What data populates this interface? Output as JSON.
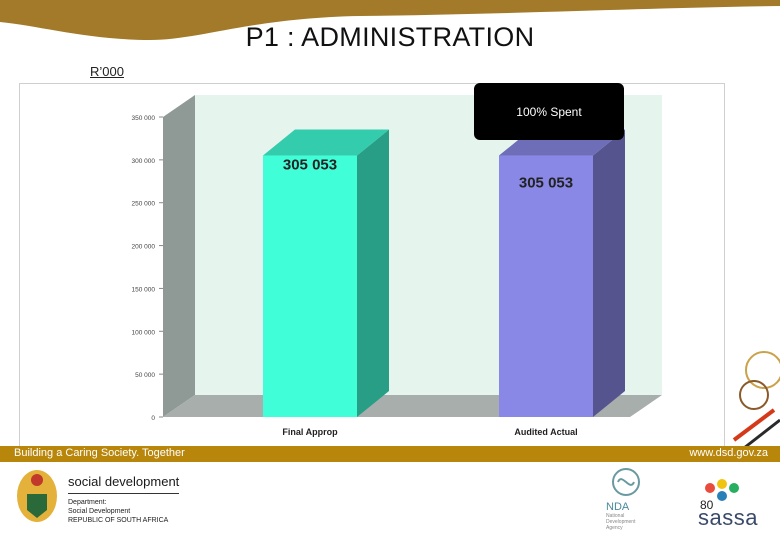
{
  "slide": {
    "title": "P1 : ADMINISTRATION",
    "unit": "R’000",
    "callout": "100% Spent",
    "page_number": "80"
  },
  "footer": {
    "tagline": "Building a Caring Society. Together",
    "website": "www.dsd.gov.za",
    "band_color": "#b8860b"
  },
  "logos": {
    "dept_name": "social development",
    "dept_lines": [
      "Department:",
      "Social Development",
      "REPUBLIC OF SOUTH AFRICA"
    ],
    "nda": "NDA",
    "nda_sub": [
      "National",
      "Development",
      "Agency"
    ],
    "sassa": "sassa"
  },
  "chart_data": {
    "type": "bar",
    "categories": [
      "Final Approp",
      "Audited Actual"
    ],
    "values": [
      305053,
      305053
    ],
    "value_labels": [
      "305 053",
      "305 053"
    ],
    "ylim": [
      0,
      350000
    ],
    "yticks": [
      0,
      50000,
      100000,
      150000,
      200000,
      250000,
      300000,
      350000
    ],
    "ytick_labels": [
      "0",
      "50 000",
      "100 000",
      "150 000",
      "200 000",
      "250 000",
      "300 000",
      "350 000"
    ],
    "colors": [
      "#40ffd8",
      "#8a88e6"
    ],
    "grid": false,
    "style": "3d"
  }
}
